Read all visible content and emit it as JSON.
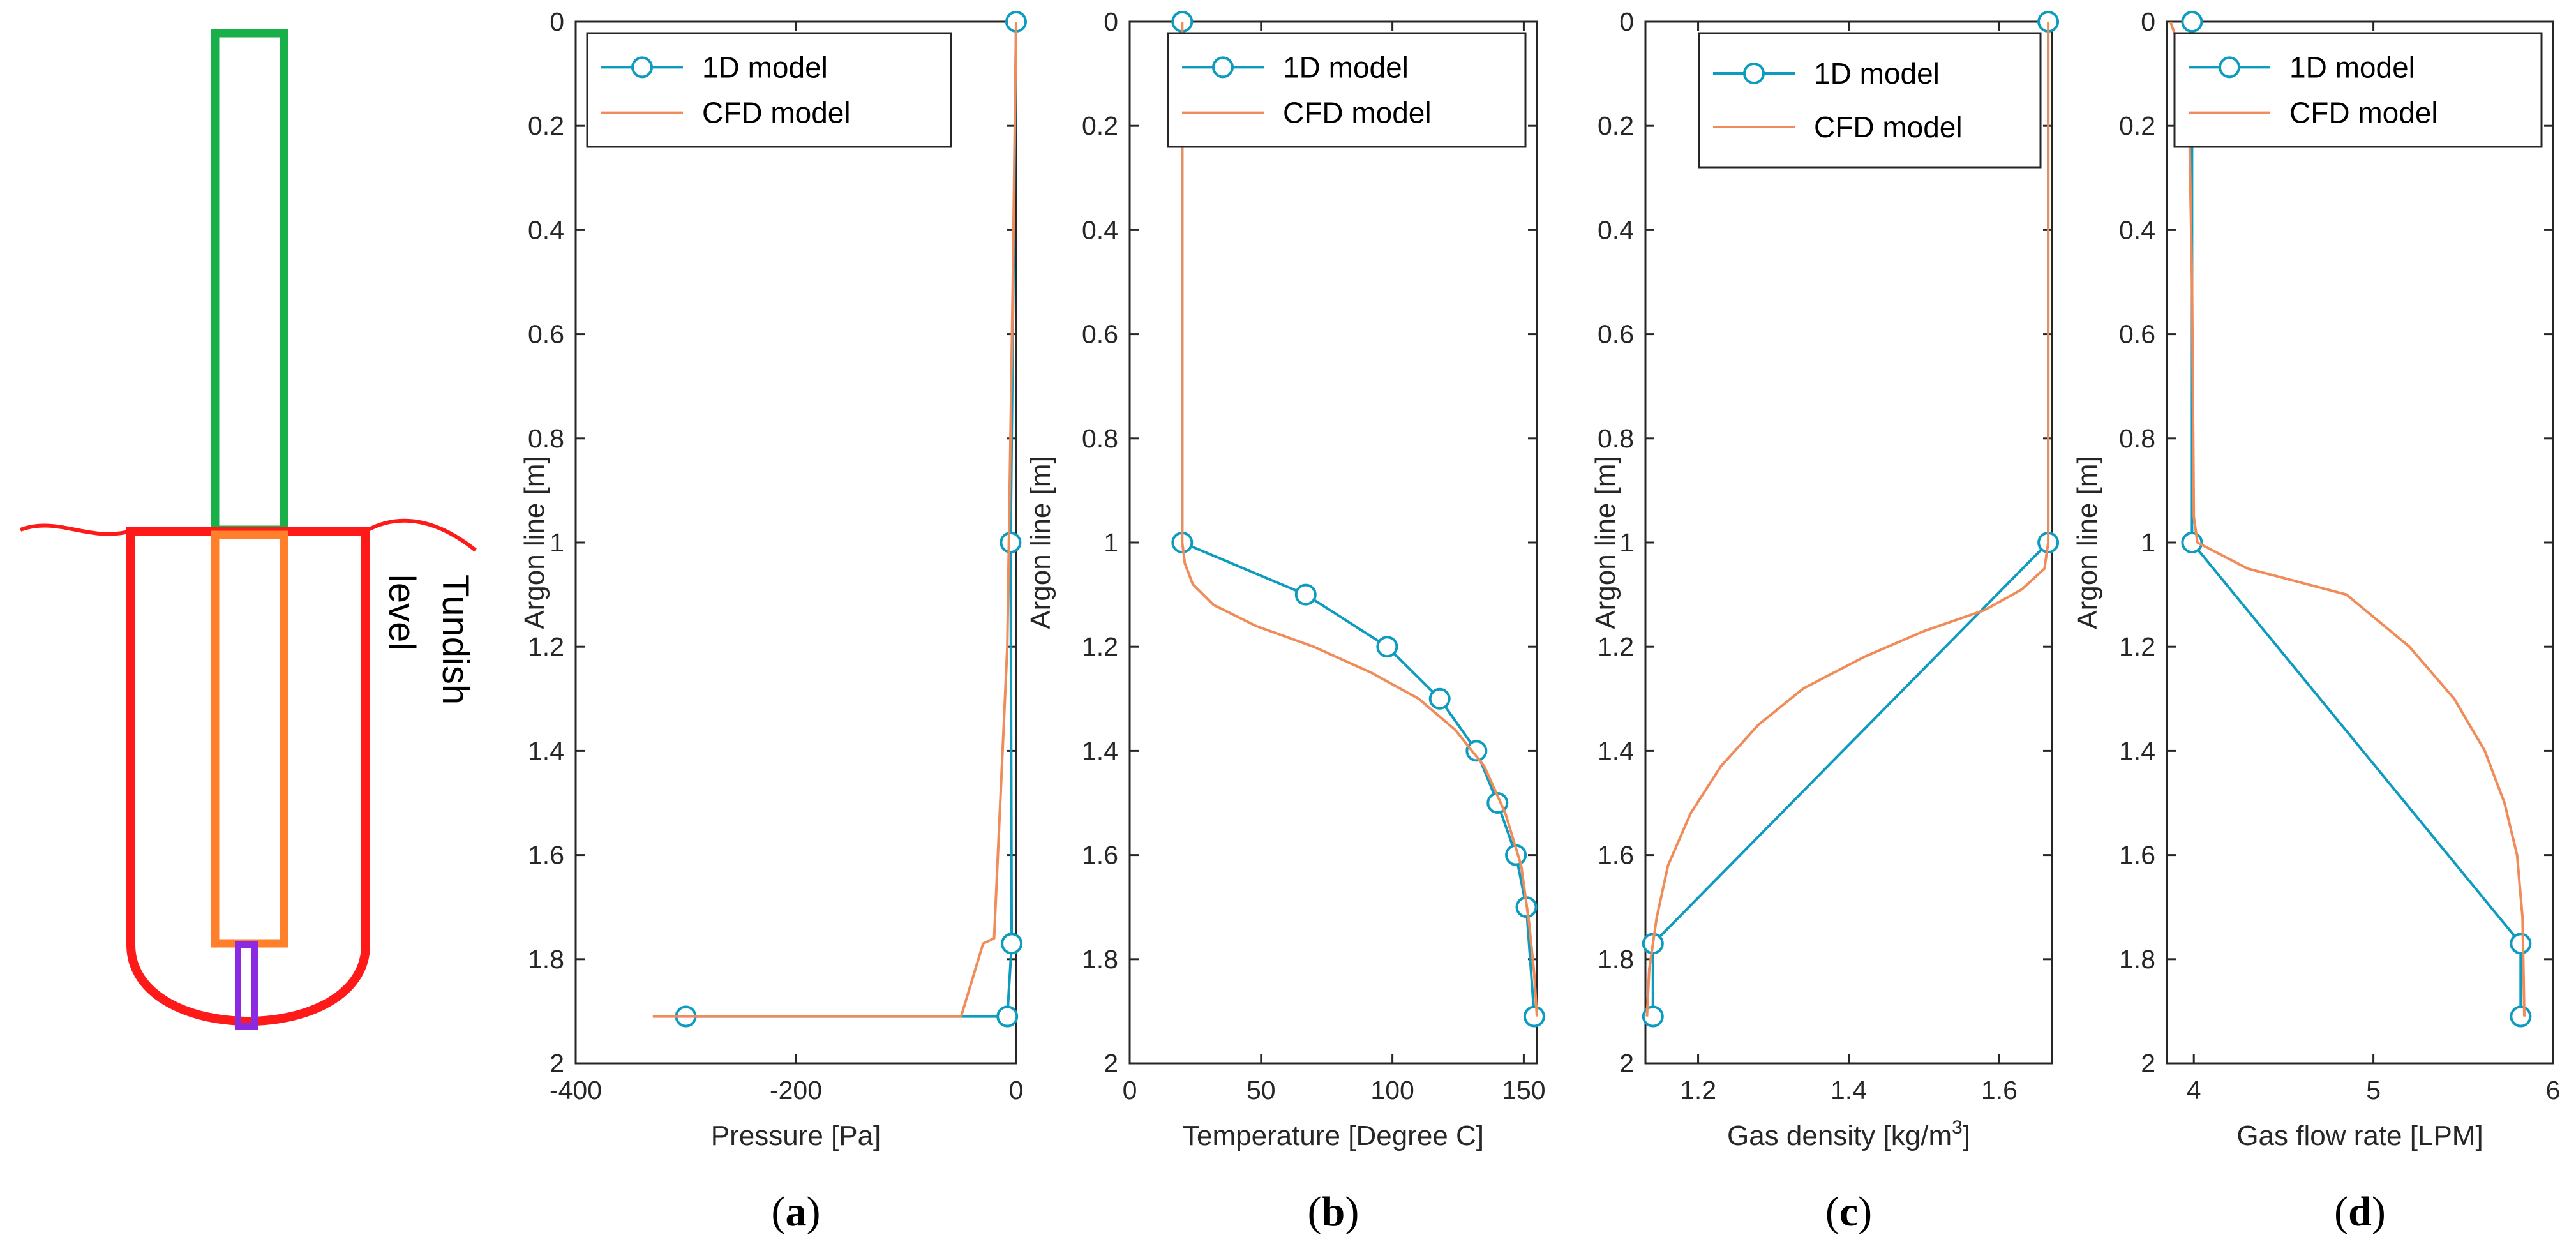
{
  "colors": {
    "model_1d": "#0e9bc0",
    "model_cfd": "#f08c5a",
    "axis": "#262626",
    "schematic_upper_tube": "#19b04a",
    "schematic_vessel": "#ff1a1a",
    "schematic_inner_tube": "#ff7f2a",
    "schematic_nozzle": "#8a2be2"
  },
  "schematic": {
    "label_line1": "Tundish",
    "label_line2": "level"
  },
  "chart_data": [
    {
      "type": "line",
      "panel_label": "a",
      "xlabel": "Pressure [Pa]",
      "ylabel": "Argon line [m]",
      "xlim": [
        -400,
        0
      ],
      "ylim": [
        0,
        2
      ],
      "y_reversed": true,
      "xticks": [
        -400,
        -200,
        0
      ],
      "yticks": [
        0,
        0.2,
        0.4,
        0.6,
        0.8,
        1,
        1.2,
        1.4,
        1.6,
        1.8,
        2
      ],
      "legend_position": "top-left",
      "grid": false,
      "series": [
        {
          "name": "1D model",
          "style": "line-circle",
          "x": [
            0,
            -5,
            -4,
            -8,
            -300
          ],
          "y": [
            0,
            1,
            1.77,
            1.91,
            1.91
          ]
        },
        {
          "name": "CFD model",
          "style": "line",
          "x": [
            0,
            -3,
            -8,
            -20,
            -30,
            -50,
            -330
          ],
          "y": [
            0,
            0.5,
            1.2,
            1.76,
            1.77,
            1.91,
            1.91
          ]
        }
      ]
    },
    {
      "type": "line",
      "panel_label": "b",
      "xlabel": "Temperature [Degree C]",
      "ylabel": "Argon line [m]",
      "xlim": [
        0,
        155
      ],
      "ylim": [
        0,
        2
      ],
      "y_reversed": true,
      "xticks": [
        0,
        50,
        100,
        150
      ],
      "yticks": [
        0,
        0.2,
        0.4,
        0.6,
        0.8,
        1,
        1.2,
        1.4,
        1.6,
        1.8,
        2
      ],
      "legend_position": "top-right",
      "grid": false,
      "series": [
        {
          "name": "1D model",
          "style": "line-circle",
          "x": [
            20,
            20,
            67,
            98,
            118,
            132,
            140,
            147,
            151,
            154
          ],
          "y": [
            0,
            1,
            1.1,
            1.2,
            1.3,
            1.4,
            1.5,
            1.6,
            1.7,
            1.91
          ]
        },
        {
          "name": "CFD model",
          "style": "line",
          "x": [
            20,
            20,
            21,
            24,
            32,
            48,
            70,
            92,
            110,
            124,
            135,
            143,
            149,
            152,
            154,
            155
          ],
          "y": [
            0,
            1.0,
            1.04,
            1.08,
            1.12,
            1.16,
            1.2,
            1.25,
            1.3,
            1.36,
            1.43,
            1.52,
            1.62,
            1.73,
            1.83,
            1.91
          ]
        }
      ]
    },
    {
      "type": "line",
      "panel_label": "c",
      "xlabel": "Gas density [kg/m",
      "xlabel_superscript": "3",
      "xlabel_suffix": "]",
      "ylabel": "Argon line [m]",
      "xlim": [
        1.13,
        1.67
      ],
      "ylim": [
        0,
        2
      ],
      "y_reversed": true,
      "xticks": [
        1.2,
        1.4,
        1.6
      ],
      "yticks": [
        0,
        0.2,
        0.4,
        0.6,
        0.8,
        1,
        1.2,
        1.4,
        1.6,
        1.8,
        2
      ],
      "legend_position": "top-right",
      "grid": false,
      "series": [
        {
          "name": "1D model",
          "style": "line-circle",
          "x": [
            1.665,
            1.665,
            1.14,
            1.14
          ],
          "y": [
            0,
            1,
            1.77,
            1.91
          ]
        },
        {
          "name": "CFD model",
          "style": "line",
          "x": [
            1.665,
            1.665,
            1.66,
            1.63,
            1.58,
            1.5,
            1.42,
            1.34,
            1.28,
            1.23,
            1.19,
            1.16,
            1.145,
            1.135,
            1.132
          ],
          "y": [
            0,
            1.0,
            1.05,
            1.09,
            1.13,
            1.17,
            1.22,
            1.28,
            1.35,
            1.43,
            1.52,
            1.62,
            1.72,
            1.82,
            1.91
          ]
        }
      ]
    },
    {
      "type": "line",
      "panel_label": "d",
      "xlabel": "Gas flow rate [LPM]",
      "ylabel": "Argon line [m]",
      "xlim": [
        3.85,
        6
      ],
      "ylim": [
        0,
        2
      ],
      "y_reversed": true,
      "xticks": [
        4,
        5,
        6
      ],
      "yticks": [
        0,
        0.2,
        0.4,
        0.6,
        0.8,
        1,
        1.2,
        1.4,
        1.6,
        1.8,
        2
      ],
      "legend_position": "top-right",
      "grid": false,
      "series": [
        {
          "name": "1D model",
          "style": "line-circle",
          "x": [
            3.99,
            3.99,
            3.99,
            5.82,
            5.82
          ],
          "y": [
            0,
            0.9,
            1,
            1.77,
            1.91
          ]
        },
        {
          "name": "CFD model",
          "style": "line",
          "x": [
            3.87,
            3.97,
            3.99,
            4.0,
            4.02,
            4.3,
            4.85,
            5.2,
            5.45,
            5.62,
            5.73,
            5.8,
            5.83,
            5.84
          ],
          "y": [
            0,
            0.1,
            0.5,
            0.95,
            1.0,
            1.05,
            1.1,
            1.2,
            1.3,
            1.4,
            1.5,
            1.6,
            1.72,
            1.91
          ]
        }
      ]
    }
  ]
}
